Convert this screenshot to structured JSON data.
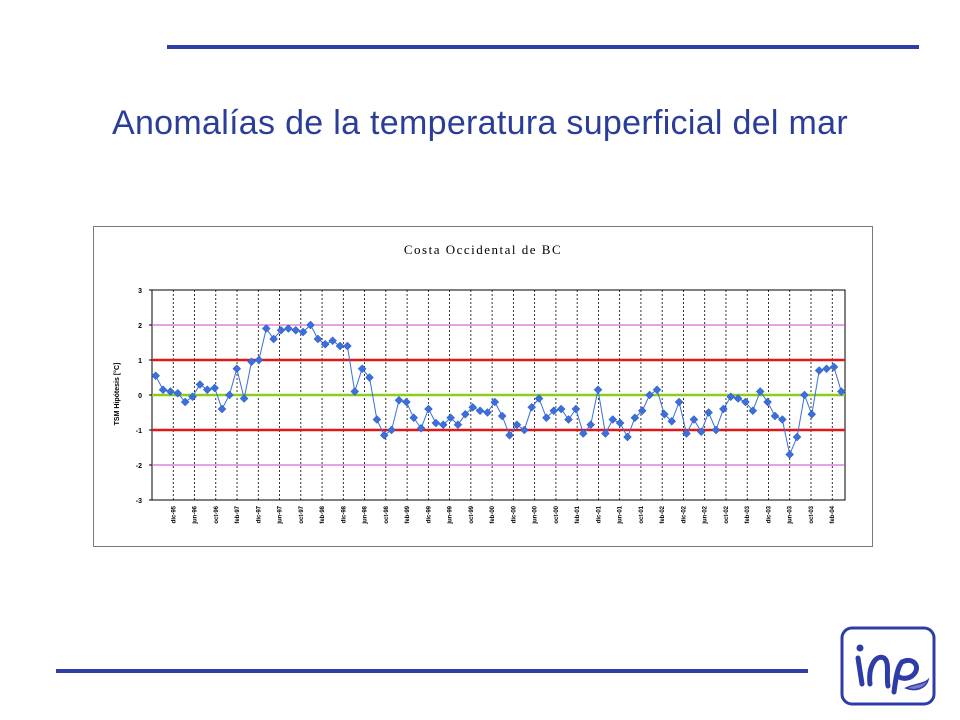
{
  "slide": {
    "title": "Anomalías de la temperatura superficial del mar"
  },
  "chart_data": {
    "type": "line",
    "title": "Costa Occidental de BC",
    "ylabel": "TSM Hipótesis [°C]",
    "xlabel": "",
    "ylim": [
      -3,
      3
    ],
    "yticks": [
      "3",
      "2",
      "1",
      "0",
      "-1",
      "-2",
      "-3"
    ],
    "grid": true,
    "legend": "none",
    "x_tick_labels": [
      "dic-95",
      "jun-96",
      "oct-96",
      "feb-97",
      "dic-97",
      "jun-97",
      "oct-97",
      "feb-98",
      "dic-98",
      "jun-98",
      "oct-98",
      "feb-99",
      "dic-99",
      "jun-99",
      "oct-99",
      "feb-00",
      "dic-00",
      "jun-00",
      "oct-00",
      "feb-01",
      "dic-01",
      "jun-01",
      "oct-01",
      "feb-02",
      "dic-02",
      "jun-02",
      "oct-02",
      "feb-03",
      "dic-03",
      "jun-03",
      "oct-03",
      "feb-04"
    ],
    "reference_lines": [
      {
        "value": 2,
        "color": "#cc44cc"
      },
      {
        "value": 1,
        "color": "#e01818"
      },
      {
        "value": 0,
        "color": "#8ccc1a"
      },
      {
        "value": -1,
        "color": "#e01818"
      },
      {
        "value": -2,
        "color": "#cc44cc"
      }
    ],
    "series": [
      {
        "color": "#3a6fdc",
        "values": [
          0.55,
          0.15,
          0.1,
          0.05,
          -0.2,
          -0.05,
          0.3,
          0.15,
          0.2,
          -0.4,
          0.0,
          0.75,
          -0.1,
          0.95,
          1.0,
          1.9,
          1.6,
          1.85,
          1.9,
          1.85,
          1.8,
          2.0,
          1.6,
          1.45,
          1.55,
          1.4,
          1.4,
          0.1,
          0.75,
          0.5,
          -0.7,
          -1.15,
          -1.0,
          -0.15,
          -0.2,
          -0.65,
          -0.95,
          -0.4,
          -0.8,
          -0.85,
          -0.65,
          -0.85,
          -0.55,
          -0.35,
          -0.45,
          -0.5,
          -0.2,
          -0.6,
          -1.15,
          -0.85,
          -1.0,
          -0.35,
          -0.1,
          -0.65,
          -0.45,
          -0.4,
          -0.7,
          -0.4,
          -1.1,
          -0.85,
          0.15,
          -1.1,
          -0.7,
          -0.8,
          -1.2,
          -0.65,
          -0.45,
          0.0,
          0.15,
          -0.55,
          -0.75,
          -0.2,
          -1.1,
          -0.7,
          -1.05,
          -0.5,
          -1.0,
          -0.4,
          -0.05,
          -0.1,
          -0.2,
          -0.45,
          0.1,
          -0.2,
          -0.6,
          -0.7,
          -1.7,
          -1.2,
          0.0,
          -0.55,
          0.7,
          0.75,
          0.8,
          0.1
        ]
      }
    ]
  },
  "logo": {
    "name": "institution-logo"
  }
}
